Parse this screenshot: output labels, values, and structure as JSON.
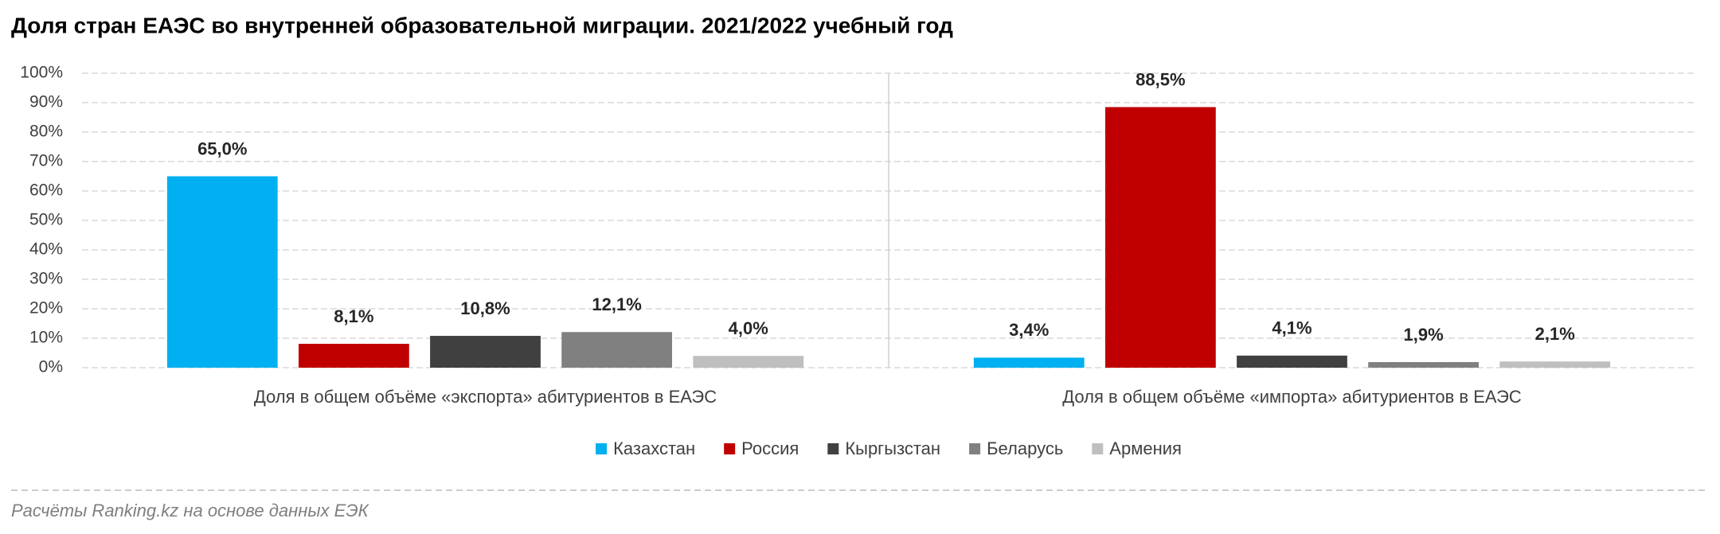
{
  "chart_data": {
    "type": "bar",
    "title": "Доля стран ЕАЭС во внутренней образовательной миграции. 2021/2022 учебный год",
    "categories": [
      "Доля в общем объёме «экспорта» абитуриентов в ЕАЭС",
      "Доля в общем объёме «импорта» абитуриентов в ЕАЭС"
    ],
    "series": [
      {
        "name": "Казахстан",
        "color": "#00b0f0",
        "values": [
          65.0,
          3.4
        ],
        "value_labels": [
          "65,0%",
          "3,4%"
        ]
      },
      {
        "name": "Россия",
        "color": "#c00000",
        "values": [
          8.1,
          88.5
        ],
        "value_labels": [
          "8,1%",
          "88,5%"
        ]
      },
      {
        "name": "Кыргызстан",
        "color": "#404040",
        "values": [
          10.8,
          4.1
        ],
        "value_labels": [
          "10,8%",
          "4,1%"
        ]
      },
      {
        "name": "Беларусь",
        "color": "#808080",
        "values": [
          12.1,
          1.9
        ],
        "value_labels": [
          "12,1%",
          "1,9%"
        ]
      },
      {
        "name": "Армения",
        "color": "#bfbfbf",
        "values": [
          4.0,
          2.1
        ],
        "value_labels": [
          "4,0%",
          "2,1%"
        ]
      }
    ],
    "ylim": [
      0,
      100
    ],
    "yticks": [
      {
        "value": 0,
        "label": "0%"
      },
      {
        "value": 10,
        "label": "10%"
      },
      {
        "value": 20,
        "label": "20%"
      },
      {
        "value": 30,
        "label": "30%"
      },
      {
        "value": 40,
        "label": "40%"
      },
      {
        "value": 50,
        "label": "50%"
      },
      {
        "value": 60,
        "label": "60%"
      },
      {
        "value": 70,
        "label": "70%"
      },
      {
        "value": 80,
        "label": "80%"
      },
      {
        "value": 90,
        "label": "90%"
      },
      {
        "value": 100,
        "label": "100%"
      }
    ],
    "grid": true,
    "legend": "bottom",
    "source": "Расчёты Ranking.kz на основе данных ЕЭК"
  }
}
